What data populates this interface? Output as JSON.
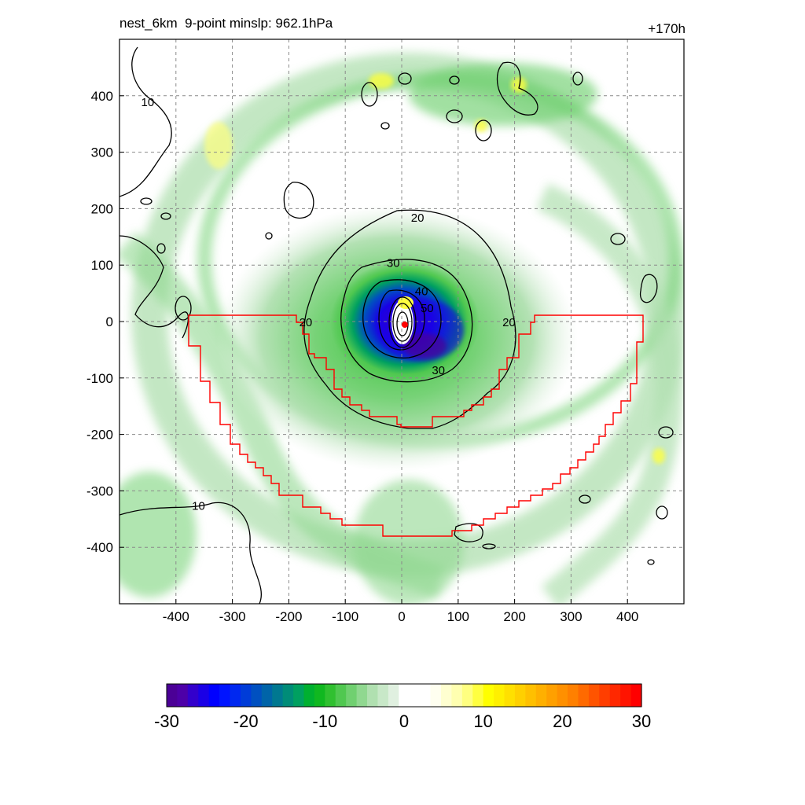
{
  "figure": {
    "title_left": "nest_6km  9-point minslp: 962.1hPa",
    "title_right": "+170h"
  },
  "map": {
    "x_ticks": [
      -400,
      -300,
      -200,
      -100,
      0,
      100,
      200,
      300,
      400
    ],
    "y_ticks": [
      400,
      300,
      200,
      100,
      0,
      -100,
      -200,
      -300,
      -400
    ],
    "x_range": [
      -500,
      500
    ],
    "y_range": [
      -500,
      500
    ],
    "grid": "dashed",
    "contour_labels": [
      {
        "text": "10",
        "x": -450,
        "y": 390
      },
      {
        "text": "10",
        "x": -360,
        "y": -325
      },
      {
        "text": "20",
        "x": 28,
        "y": 185
      },
      {
        "text": "20",
        "x": -170,
        "y": 0
      },
      {
        "text": "20",
        "x": 190,
        "y": 0
      },
      {
        "text": "30",
        "x": -15,
        "y": 105
      },
      {
        "text": "30",
        "x": 65,
        "y": -85
      },
      {
        "text": "40",
        "x": 35,
        "y": 55
      },
      {
        "text": "50",
        "x": 45,
        "y": 25
      }
    ],
    "center_marker_color": "#ff0000",
    "boundary_color": "#ff0000"
  },
  "colorbar": {
    "tick_labels": [
      "-30",
      "-20",
      "-10",
      "0",
      "10",
      "20",
      "30"
    ],
    "range": [
      -30,
      30
    ],
    "colors": [
      "#4b0096",
      "#4d00a8",
      "#3300cc",
      "#1a00e6",
      "#0000ff",
      "#0014ff",
      "#0028f0",
      "#003cd8",
      "#0050c0",
      "#0064a8",
      "#007890",
      "#008c78",
      "#00a060",
      "#00b030",
      "#10b820",
      "#30c030",
      "#50c850",
      "#70d070",
      "#90d890",
      "#b0e0b0",
      "#c8e8c8",
      "#e0f0e0",
      "#ffffff",
      "#ffffff",
      "#ffffff",
      "#fffff0",
      "#ffffd0",
      "#ffffb0",
      "#ffff80",
      "#ffff40",
      "#ffff00",
      "#fff000",
      "#ffe000",
      "#ffd000",
      "#ffc000",
      "#ffb000",
      "#ffa000",
      "#ff9000",
      "#ff8000",
      "#ff6a00",
      "#ff5400",
      "#ff3e00",
      "#ff2800",
      "#ff1400",
      "#ff0000"
    ]
  }
}
